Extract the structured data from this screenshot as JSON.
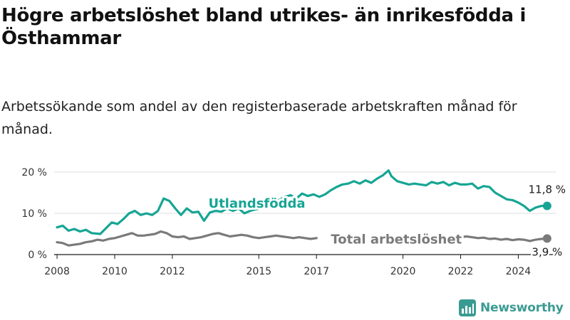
{
  "title": "Högre arbetslöshet bland utrikes- än inrikesfödda i Östhammar",
  "subtitle": "Arbetssökande som andel av den registerbaserade arbetskraften månad för månad.",
  "brand": {
    "name": "Newsworthy",
    "color": "#3a9b92"
  },
  "colors": {
    "foreign": "#16a594",
    "total": "#7a7a7a",
    "axis": "#1a1a1a",
    "grid": "#dddddd"
  },
  "chart_data": {
    "type": "line",
    "title": "Högre arbetslöshet bland utrikes- än inrikesfödda i Östhammar",
    "subtitle": "Arbetssökande som andel av den registerbaserade arbetskraften månad för månad.",
    "xlabel": "",
    "ylabel": "",
    "xlim": [
      2007.9,
      2025.3
    ],
    "ylim": [
      0,
      20
    ],
    "y_ticks": [
      0,
      10,
      20
    ],
    "y_tick_labels": [
      "0 %",
      "10 %",
      "20 %"
    ],
    "x_ticks": [
      2008,
      2010,
      2012,
      2015,
      2017,
      2020,
      2022,
      2024
    ],
    "x_tick_labels": [
      "2008",
      "2010",
      "2012",
      "2015",
      "2017",
      "2020",
      "2022",
      "2024"
    ],
    "grid": true,
    "legend": "inline labels",
    "series": [
      {
        "name": "Utlandsfödda",
        "color": "#16a594",
        "end_label": "11,8 %",
        "points": [
          [
            2008.0,
            6.6
          ],
          [
            2008.2,
            7.0
          ],
          [
            2008.4,
            5.8
          ],
          [
            2008.6,
            6.2
          ],
          [
            2008.8,
            5.6
          ],
          [
            2009.0,
            6.0
          ],
          [
            2009.2,
            5.2
          ],
          [
            2009.5,
            5.0
          ],
          [
            2009.7,
            6.4
          ],
          [
            2009.9,
            7.8
          ],
          [
            2010.1,
            7.4
          ],
          [
            2010.3,
            8.6
          ],
          [
            2010.5,
            10.0
          ],
          [
            2010.7,
            10.6
          ],
          [
            2010.9,
            9.6
          ],
          [
            2011.1,
            10.0
          ],
          [
            2011.3,
            9.6
          ],
          [
            2011.5,
            10.6
          ],
          [
            2011.7,
            13.6
          ],
          [
            2011.9,
            13.0
          ],
          [
            2012.1,
            11.2
          ],
          [
            2012.3,
            9.6
          ],
          [
            2012.5,
            11.2
          ],
          [
            2012.7,
            10.2
          ],
          [
            2012.9,
            10.4
          ],
          [
            2013.1,
            8.2
          ],
          [
            2013.3,
            10.2
          ],
          [
            2013.5,
            10.6
          ],
          [
            2013.7,
            10.4
          ],
          [
            2013.9,
            11.2
          ],
          [
            2014.1,
            10.6
          ],
          [
            2014.3,
            11.2
          ],
          [
            2014.5,
            10.0
          ],
          [
            2014.7,
            10.6
          ],
          [
            2014.9,
            11.0
          ],
          [
            2015.1,
            11.2
          ],
          [
            2015.3,
            11.6
          ],
          [
            2015.5,
            12.0
          ],
          [
            2015.7,
            13.2
          ],
          [
            2015.9,
            14.0
          ],
          [
            2016.1,
            14.4
          ],
          [
            2016.3,
            13.6
          ],
          [
            2016.5,
            14.8
          ],
          [
            2016.7,
            14.2
          ],
          [
            2016.9,
            14.6
          ],
          [
            2017.1,
            14.0
          ],
          [
            2017.3,
            14.6
          ],
          [
            2017.5,
            15.6
          ],
          [
            2017.7,
            16.4
          ],
          [
            2017.9,
            17.0
          ],
          [
            2018.1,
            17.2
          ],
          [
            2018.3,
            17.8
          ],
          [
            2018.5,
            17.2
          ],
          [
            2018.7,
            18.0
          ],
          [
            2018.9,
            17.4
          ],
          [
            2019.1,
            18.4
          ],
          [
            2019.3,
            19.2
          ],
          [
            2019.5,
            20.4
          ],
          [
            2019.6,
            19.0
          ],
          [
            2019.8,
            17.8
          ],
          [
            2020.0,
            17.4
          ],
          [
            2020.2,
            17.0
          ],
          [
            2020.4,
            17.2
          ],
          [
            2020.6,
            17.0
          ],
          [
            2020.8,
            16.8
          ],
          [
            2021.0,
            17.6
          ],
          [
            2021.2,
            17.2
          ],
          [
            2021.4,
            17.6
          ],
          [
            2021.6,
            16.8
          ],
          [
            2021.8,
            17.4
          ],
          [
            2022.0,
            17.0
          ],
          [
            2022.2,
            17.0
          ],
          [
            2022.4,
            17.2
          ],
          [
            2022.6,
            16.0
          ],
          [
            2022.8,
            16.6
          ],
          [
            2023.0,
            16.4
          ],
          [
            2023.2,
            15.0
          ],
          [
            2023.4,
            14.2
          ],
          [
            2023.6,
            13.4
          ],
          [
            2023.8,
            13.2
          ],
          [
            2024.0,
            12.6
          ],
          [
            2024.2,
            11.8
          ],
          [
            2024.4,
            10.6
          ],
          [
            2024.6,
            11.4
          ],
          [
            2024.8,
            11.8
          ],
          [
            2025.0,
            11.8
          ]
        ]
      },
      {
        "name": "Total arbetslöshet",
        "color": "#7a7a7a",
        "end_label": "3,9 %",
        "points": [
          [
            2008.0,
            3.0
          ],
          [
            2008.2,
            2.8
          ],
          [
            2008.4,
            2.2
          ],
          [
            2008.6,
            2.4
          ],
          [
            2008.8,
            2.6
          ],
          [
            2009.0,
            3.0
          ],
          [
            2009.2,
            3.2
          ],
          [
            2009.4,
            3.6
          ],
          [
            2009.6,
            3.4
          ],
          [
            2009.8,
            3.8
          ],
          [
            2010.0,
            4.0
          ],
          [
            2010.2,
            4.4
          ],
          [
            2010.4,
            4.8
          ],
          [
            2010.6,
            5.2
          ],
          [
            2010.8,
            4.6
          ],
          [
            2011.0,
            4.6
          ],
          [
            2011.2,
            4.8
          ],
          [
            2011.4,
            5.0
          ],
          [
            2011.6,
            5.6
          ],
          [
            2011.8,
            5.2
          ],
          [
            2012.0,
            4.4
          ],
          [
            2012.2,
            4.2
          ],
          [
            2012.4,
            4.4
          ],
          [
            2012.6,
            3.8
          ],
          [
            2012.8,
            4.0
          ],
          [
            2013.0,
            4.2
          ],
          [
            2013.2,
            4.6
          ],
          [
            2013.4,
            5.0
          ],
          [
            2013.6,
            5.2
          ],
          [
            2013.8,
            4.8
          ],
          [
            2014.0,
            4.4
          ],
          [
            2014.2,
            4.6
          ],
          [
            2014.4,
            4.8
          ],
          [
            2014.6,
            4.6
          ],
          [
            2014.8,
            4.2
          ],
          [
            2015.0,
            4.0
          ],
          [
            2015.2,
            4.2
          ],
          [
            2015.4,
            4.4
          ],
          [
            2015.6,
            4.6
          ],
          [
            2015.8,
            4.4
          ],
          [
            2016.0,
            4.2
          ],
          [
            2016.2,
            4.0
          ],
          [
            2016.4,
            4.2
          ],
          [
            2016.6,
            4.0
          ],
          [
            2016.8,
            3.8
          ],
          [
            2017.0,
            4.0
          ],
          [
            2022.0,
            4.2
          ],
          [
            2022.2,
            4.4
          ],
          [
            2022.4,
            4.2
          ],
          [
            2022.6,
            4.0
          ],
          [
            2022.8,
            4.1
          ],
          [
            2023.0,
            3.8
          ],
          [
            2023.2,
            3.9
          ],
          [
            2023.4,
            3.6
          ],
          [
            2023.6,
            3.8
          ],
          [
            2023.8,
            3.5
          ],
          [
            2024.0,
            3.7
          ],
          [
            2024.2,
            3.6
          ],
          [
            2024.4,
            3.3
          ],
          [
            2024.6,
            3.6
          ],
          [
            2024.8,
            3.8
          ],
          [
            2025.0,
            3.9
          ]
        ]
      }
    ]
  }
}
